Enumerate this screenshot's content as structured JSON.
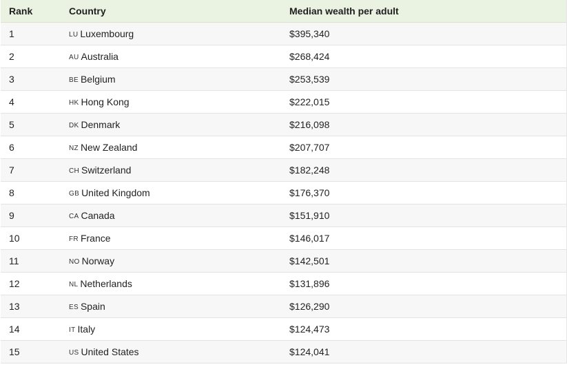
{
  "table": {
    "headers": {
      "rank": "Rank",
      "country": "Country",
      "wealth": "Median wealth per adult"
    },
    "rows": [
      {
        "rank": "1",
        "code": "LU",
        "country": "Luxembourg",
        "wealth": "$395,340"
      },
      {
        "rank": "2",
        "code": "AU",
        "country": "Australia",
        "wealth": "$268,424"
      },
      {
        "rank": "3",
        "code": "BE",
        "country": "Belgium",
        "wealth": "$253,539"
      },
      {
        "rank": "4",
        "code": "HK",
        "country": "Hong Kong",
        "wealth": "$222,015"
      },
      {
        "rank": "5",
        "code": "DK",
        "country": "Denmark",
        "wealth": "$216,098"
      },
      {
        "rank": "6",
        "code": "NZ",
        "country": "New Zealand",
        "wealth": "$207,707"
      },
      {
        "rank": "7",
        "code": "CH",
        "country": "Switzerland",
        "wealth": "$182,248"
      },
      {
        "rank": "8",
        "code": "GB",
        "country": "United Kingdom",
        "wealth": "$176,370"
      },
      {
        "rank": "9",
        "code": "CA",
        "country": "Canada",
        "wealth": "$151,910"
      },
      {
        "rank": "10",
        "code": "FR",
        "country": "France",
        "wealth": "$146,017"
      },
      {
        "rank": "11",
        "code": "NO",
        "country": "Norway",
        "wealth": "$142,501"
      },
      {
        "rank": "12",
        "code": "NL",
        "country": "Netherlands",
        "wealth": "$131,896"
      },
      {
        "rank": "13",
        "code": "ES",
        "country": "Spain",
        "wealth": "$126,290"
      },
      {
        "rank": "14",
        "code": "IT",
        "country": "Italy",
        "wealth": "$124,473"
      },
      {
        "rank": "15",
        "code": "US",
        "country": "United States",
        "wealth": "$124,041"
      }
    ]
  }
}
